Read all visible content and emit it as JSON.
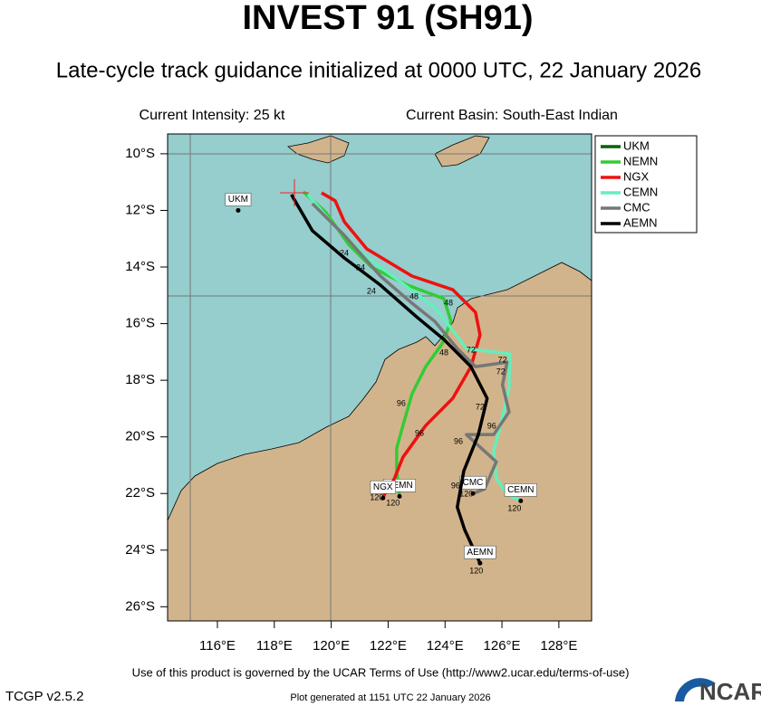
{
  "header": {
    "title": "INVEST 91 (SH91)",
    "subtitle": "Late-cycle track guidance initialized at 0000 UTC, 22 January 2026",
    "intensity": "Current Intensity: 25 kt",
    "basin": "Current Basin: South-East Indian"
  },
  "map": {
    "lon_range": [
      114.25,
      129.15
    ],
    "lat_range": [
      -9.3,
      -26.5
    ],
    "xticks": [
      {
        "value": 116,
        "label": "116°E"
      },
      {
        "value": 118,
        "label": "118°E"
      },
      {
        "value": 120,
        "label": "120°E"
      },
      {
        "value": 122,
        "label": "122°E"
      },
      {
        "value": 124,
        "label": "124°E"
      },
      {
        "value": 126,
        "label": "126°E"
      },
      {
        "value": 128,
        "label": "128°E"
      }
    ],
    "yticks": [
      {
        "value": -10,
        "label": "10°S"
      },
      {
        "value": -12,
        "label": "12°S"
      },
      {
        "value": -14,
        "label": "14°S"
      },
      {
        "value": -16,
        "label": "16°S"
      },
      {
        "value": -18,
        "label": "18°S"
      },
      {
        "value": -20,
        "label": "20°S"
      },
      {
        "value": -22,
        "label": "22°S"
      },
      {
        "value": -24,
        "label": "24°S"
      },
      {
        "value": -26,
        "label": "26°S"
      }
    ]
  },
  "tracks": [
    {
      "name": "UKM",
      "color": "#006400",
      "lon": [
        116.73
      ],
      "lat": [
        -12.0
      ]
    },
    {
      "name": "NEMN",
      "color": "#33cc33",
      "lon": [
        119.02,
        119.82,
        120.61,
        121.41,
        122.68,
        123.96,
        124.21,
        123.89,
        123.32,
        122.84,
        122.52,
        122.3,
        122.3,
        122.4
      ],
      "lat": [
        -11.34,
        -12.08,
        -13.2,
        -14.0,
        -14.64,
        -15.12,
        -15.92,
        -16.72,
        -17.52,
        -18.48,
        -19.6,
        -20.4,
        -21.2,
        -22.1
      ]
    },
    {
      "name": "NGX",
      "color": "#ee1111",
      "lon": [
        119.66,
        120.14,
        120.46,
        121.25,
        122.84,
        124.27,
        125.07,
        125.23,
        124.91,
        124.27,
        123.32,
        122.52,
        122.2,
        121.89,
        121.82
      ],
      "lat": [
        -11.38,
        -11.66,
        -12.4,
        -13.36,
        -14.32,
        -14.8,
        -15.6,
        -16.4,
        -17.52,
        -18.64,
        -19.6,
        -20.72,
        -21.52,
        -22.0,
        -22.16
      ]
    },
    {
      "name": "CEMN",
      "color": "#66eebb",
      "lon": [
        119.18,
        119.98,
        121.09,
        122.37,
        123.64,
        124.27,
        124.75,
        125.55,
        126.28,
        126.25,
        125.96,
        125.71,
        125.8,
        126.18,
        126.66
      ],
      "lat": [
        -11.44,
        -12.4,
        -13.52,
        -14.48,
        -15.44,
        -16.24,
        -16.88,
        -16.98,
        -17.07,
        -18.26,
        -19.54,
        -20.5,
        -21.46,
        -22.03,
        -22.26
      ]
    },
    {
      "name": "CMC",
      "color": "#777777",
      "lon": [
        119.34,
        120.46,
        121.73,
        122.84,
        123.64,
        124.43,
        125.07,
        126.18,
        126.02,
        126.25,
        125.71,
        124.75,
        125.8,
        125.39,
        124.98
      ],
      "lat": [
        -11.76,
        -12.88,
        -14.32,
        -15.28,
        -15.92,
        -16.88,
        -17.52,
        -17.36,
        -18.16,
        -19.12,
        -19.92,
        -19.92,
        -20.88,
        -21.84,
        -22.0
      ]
    },
    {
      "name": "AEMN",
      "color": "#000000",
      "lon": [
        118.6,
        119.34,
        120.46,
        121.73,
        123.0,
        123.96,
        124.91,
        125.48,
        125.17,
        124.66,
        124.43,
        124.69,
        125.23
      ],
      "lat": [
        -11.44,
        -12.72,
        -13.68,
        -14.64,
        -15.76,
        -16.56,
        -17.52,
        -18.64,
        -19.92,
        -21.2,
        -22.48,
        -23.28,
        -24.46
      ]
    }
  ],
  "hour_labels": [
    {
      "text": "24",
      "lon": 120.46,
      "lat": -13.52
    },
    {
      "text": "24",
      "lon": 121.03,
      "lat": -14.03
    },
    {
      "text": "24",
      "lon": 121.41,
      "lat": -14.86
    },
    {
      "text": "48",
      "lon": 122.91,
      "lat": -15.06
    },
    {
      "text": "48",
      "lon": 124.12,
      "lat": -15.28
    },
    {
      "text": "48",
      "lon": 123.96,
      "lat": -17.04
    },
    {
      "text": "72",
      "lon": 124.91,
      "lat": -16.94
    },
    {
      "text": "72",
      "lon": 126.02,
      "lat": -17.3
    },
    {
      "text": "72",
      "lon": 125.96,
      "lat": -17.71
    },
    {
      "text": "72",
      "lon": 125.23,
      "lat": -18.96
    },
    {
      "text": "96",
      "lon": 122.46,
      "lat": -18.83
    },
    {
      "text": "96",
      "lon": 123.1,
      "lat": -19.89
    },
    {
      "text": "96",
      "lon": 124.47,
      "lat": -20.18
    },
    {
      "text": "96",
      "lon": 125.64,
      "lat": -19.63
    },
    {
      "text": "96",
      "lon": 124.37,
      "lat": -21.74
    },
    {
      "text": "120",
      "lon": 121.6,
      "lat": -22.16
    },
    {
      "text": "120",
      "lon": 122.17,
      "lat": -22.35
    },
    {
      "text": "120",
      "lon": 124.75,
      "lat": -22.03
    },
    {
      "text": "120",
      "lon": 126.44,
      "lat": -22.54
    },
    {
      "text": "120",
      "lon": 125.1,
      "lat": -24.75
    }
  ],
  "footer": {
    "terms": "Use of this product is governed by the UCAR Terms of Use (http://www2.ucar.edu/terms-of-use)",
    "version": "TCGP v2.5.2",
    "generated": "Plot generated at 1151 UTC  22 January 2026",
    "logo": "NCAR"
  }
}
